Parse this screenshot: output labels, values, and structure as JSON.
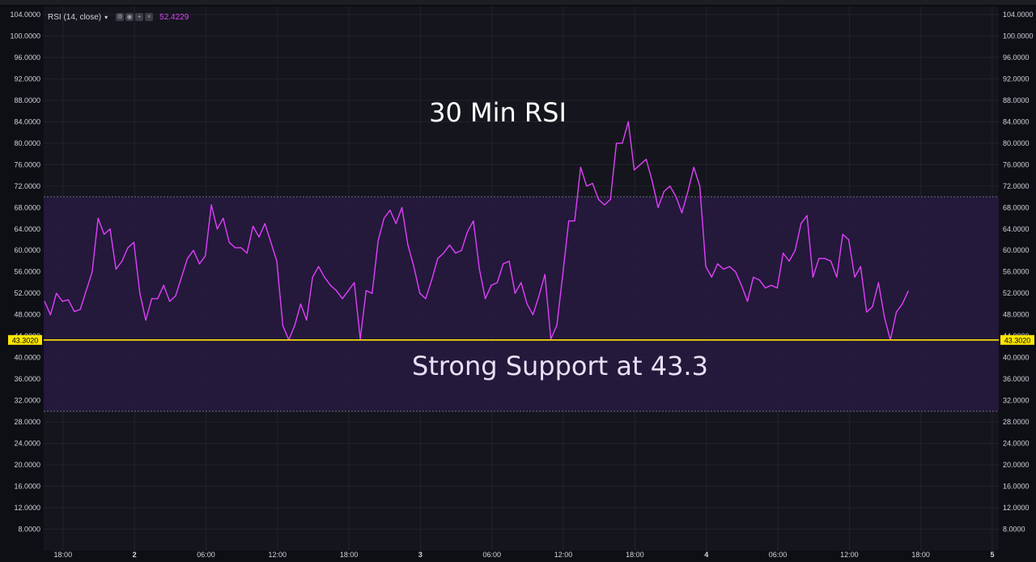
{
  "indicator": {
    "name": "RSI (14, close)",
    "current_value": "52.4229",
    "icons": [
      "settings-icon",
      "visibility-icon",
      "add-icon",
      "close-icon"
    ]
  },
  "colors": {
    "background": "#15161d",
    "rsi_line": "#e040fb",
    "band_fill": "#2a1a45",
    "support_line": "#ffe600",
    "grid": "#22242b",
    "axis_text": "#d1d4dc"
  },
  "chart_data": {
    "type": "line",
    "title": "30 Min RSI",
    "annotation": "Strong Support at 43.3",
    "ylim": [
      4,
      105.5
    ],
    "y_ticks": [
      8,
      12,
      16,
      20,
      24,
      28,
      32,
      36,
      40,
      44,
      48,
      52,
      56,
      60,
      64,
      68,
      72,
      76,
      80,
      84,
      88,
      92,
      96,
      100,
      104
    ],
    "y_tick_labels": [
      "8.0000",
      "12.0000",
      "16.0000",
      "20.0000",
      "24.0000",
      "28.0000",
      "32.0000",
      "36.0000",
      "40.0000",
      "44.0000",
      "48.0000",
      "52.0000",
      "56.0000",
      "60.0000",
      "64.0000",
      "68.0000",
      "72.0000",
      "76.0000",
      "80.0000",
      "84.0000",
      "88.0000",
      "92.0000",
      "96.0000",
      "100.0000",
      "104.0000"
    ],
    "x_ticks": [
      {
        "label": "18:00",
        "bar": 3.1
      },
      {
        "label": "2",
        "bar": 15.1
      },
      {
        "label": "06:00",
        "bar": 27.1
      },
      {
        "label": "12:00",
        "bar": 39.1
      },
      {
        "label": "18:00",
        "bar": 51.1
      },
      {
        "label": "3",
        "bar": 63.1
      },
      {
        "label": "06:00",
        "bar": 75.1
      },
      {
        "label": "12:00",
        "bar": 87.1
      },
      {
        "label": "18:00",
        "bar": 99.1
      },
      {
        "label": "4",
        "bar": 111.1
      },
      {
        "label": "06:00",
        "bar": 123.1
      },
      {
        "label": "12:00",
        "bar": 135.1
      },
      {
        "label": "18:00",
        "bar": 147.1
      },
      {
        "label": "5",
        "bar": 159.1
      }
    ],
    "band": {
      "upper": 70,
      "lower": 30
    },
    "support_level": 43.302,
    "support_label": "43.3020",
    "series": [
      {
        "values": [
          50.5,
          48,
          52,
          50.5,
          50.8,
          48.6,
          49,
          52.5,
          56,
          66,
          63,
          64,
          56.5,
          58,
          60.5,
          61.5,
          52,
          47,
          51,
          51,
          53.5,
          50.5,
          51.5,
          55,
          58.5,
          60,
          57.5,
          59,
          68.5,
          64,
          66,
          61.5,
          60.5,
          60.5,
          59.5,
          64.5,
          62.5,
          65,
          61.5,
          58,
          46,
          43.3,
          46,
          50,
          47,
          55,
          57,
          55,
          53.5,
          52.5,
          51,
          52.5,
          54,
          43.5,
          52.5,
          52,
          61.8,
          66,
          67.5,
          65,
          68,
          61,
          57,
          52,
          51,
          54.5,
          58.5,
          59.5,
          61,
          59.5,
          60,
          63.5,
          65.5,
          56.5,
          51,
          53.5,
          54,
          57.5,
          58,
          52,
          54,
          50,
          48,
          51.5,
          55.5,
          43.5,
          46,
          55.5,
          65.5,
          65.5,
          75.5,
          72,
          72.5,
          69.5,
          68.5,
          69.5,
          80,
          80,
          84,
          75,
          76,
          77,
          73,
          68,
          71,
          72,
          70,
          67,
          71,
          75.5,
          72,
          57,
          55,
          57.5,
          56.5,
          57,
          56,
          53.5,
          50.5,
          55,
          54.5,
          53,
          53.5,
          53,
          59.5,
          58,
          60,
          65,
          66.5,
          55,
          58.5,
          58.5,
          58,
          55,
          63,
          62,
          55,
          57,
          48.5,
          49.5,
          54,
          47.5,
          43.3,
          48.5,
          50,
          52.4229
        ]
      }
    ]
  }
}
